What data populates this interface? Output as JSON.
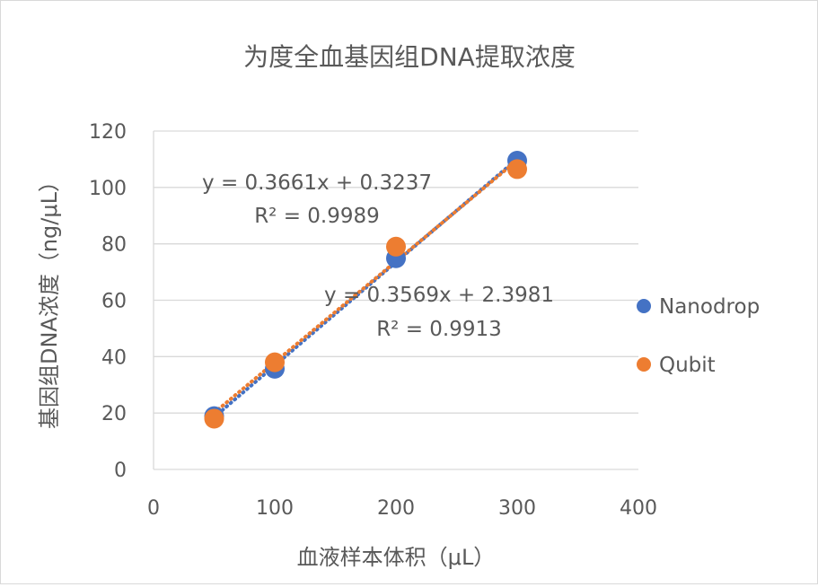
{
  "chart_data": {
    "type": "scatter",
    "title": "为度全血基因组DNA提取浓度",
    "xlabel": "血液样本体积（μL）",
    "ylabel": "基因组DNA浓度（ng/μL）",
    "xlim": [
      0,
      400
    ],
    "ylim": [
      0,
      120
    ],
    "x_ticks": [
      0,
      100,
      200,
      300,
      400
    ],
    "y_ticks": [
      0,
      20,
      40,
      60,
      80,
      100,
      120
    ],
    "grid": "horizontal",
    "legend_position": "right",
    "series": [
      {
        "name": "Nanodrop",
        "color": "#4472C4",
        "x": [
          50,
          100,
          200,
          300
        ],
        "y": [
          18.9,
          35.7,
          74.9,
          109.5
        ],
        "trendline": {
          "type": "linear",
          "equation": "y = 0.3661x + 0.3237",
          "r2": "R² = 0.9989"
        }
      },
      {
        "name": "Qubit",
        "color": "#ED7D31",
        "x": [
          50,
          100,
          200,
          300
        ],
        "y": [
          18.0,
          38.0,
          79.0,
          106.5
        ],
        "trendline": {
          "type": "linear",
          "equation": "y = 0.3569x + 2.3981",
          "r2": "R² = 0.9913"
        }
      }
    ]
  }
}
